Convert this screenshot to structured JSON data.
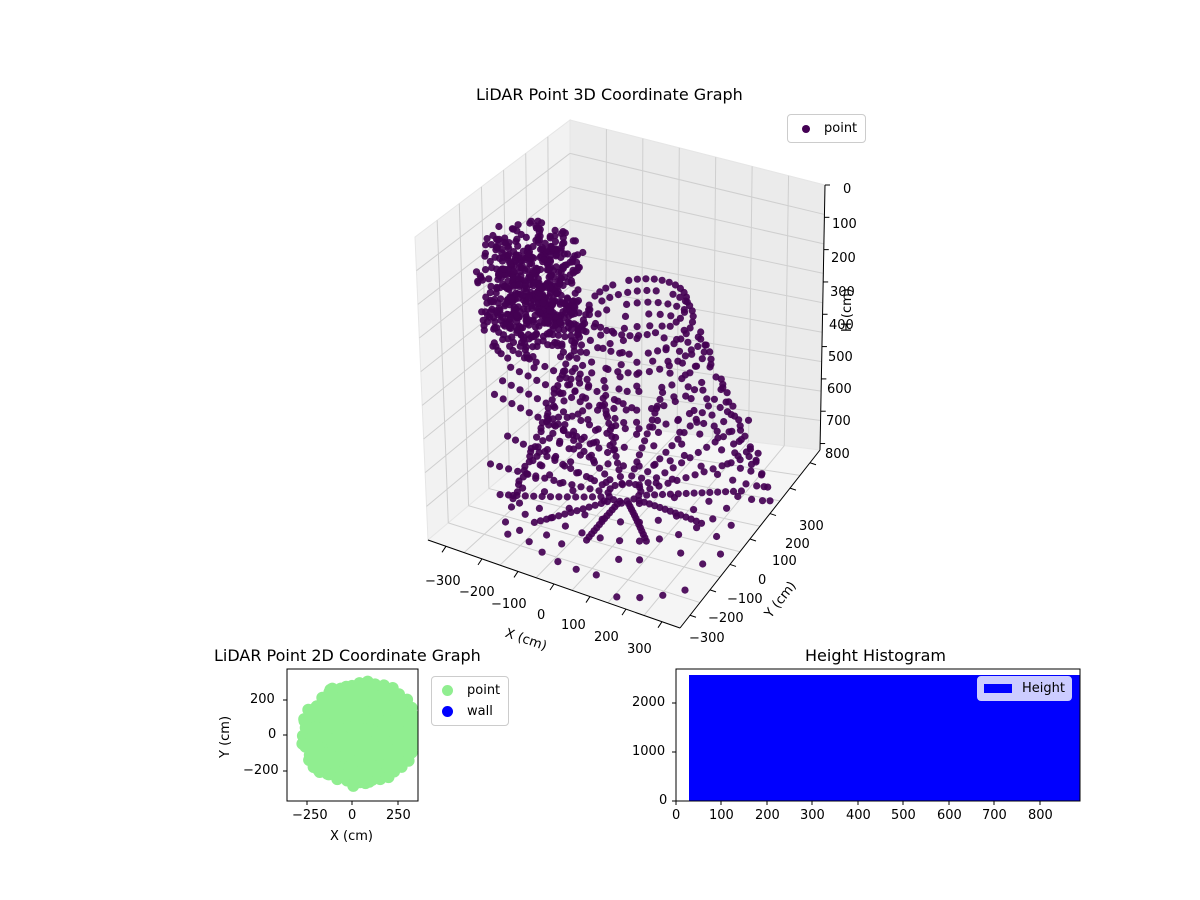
{
  "chart_data": [
    {
      "type": "scatter3d",
      "title": "LiDAR Point 3D Coordinate Graph",
      "xlabel": "X (cm)",
      "ylabel": "Y (cm)",
      "zlabel": "H (cm)",
      "x_ticks": [
        "−300",
        "−200",
        "−100",
        "0",
        "100",
        "200",
        "300"
      ],
      "y_ticks": [
        "−300",
        "−200",
        "−100",
        "0",
        "100",
        "200",
        "300"
      ],
      "z_ticks": [
        "0",
        "100",
        "200",
        "300",
        "400",
        "500",
        "600",
        "700",
        "800"
      ],
      "xlim": [
        -350,
        350
      ],
      "ylim": [
        -350,
        350
      ],
      "zlim": [
        0,
        900
      ],
      "z_inverted": true,
      "legend": [
        {
          "label": "point",
          "color": "#440154"
        }
      ],
      "legend_position": "upper right",
      "series": [
        {
          "name": "point",
          "color": "#440154",
          "description": "dense ring/dome-shaped LiDAR point cloud"
        }
      ]
    },
    {
      "type": "scatter",
      "title": "LiDAR Point 2D Coordinate Graph",
      "xlabel": "X (cm)",
      "ylabel": "Y (cm)",
      "x_ticks": [
        "−250",
        "0",
        "250"
      ],
      "y_ticks": [
        "200",
        "0",
        "−200"
      ],
      "xlim": [
        -360,
        360
      ],
      "ylim": [
        -360,
        360
      ],
      "legend": [
        {
          "label": "point",
          "color": "#90ee90"
        },
        {
          "label": "wall",
          "color": "#0000ff"
        }
      ],
      "legend_position": "outside right",
      "series": [
        {
          "name": "point",
          "color": "#90ee90",
          "description": "dense filled region of points covering most of the axes"
        },
        {
          "name": "wall",
          "color": "#0000ff",
          "values": []
        }
      ]
    },
    {
      "type": "bar",
      "title": "Height Histogram",
      "xlabel": "",
      "ylabel": "",
      "x_ticks": [
        "0",
        "100",
        "200",
        "300",
        "400",
        "500",
        "600",
        "700",
        "800"
      ],
      "y_ticks": [
        "0",
        "1000",
        "2000"
      ],
      "xlim": [
        0,
        890
      ],
      "ylim": [
        0,
        2680
      ],
      "legend": [
        {
          "label": "Height",
          "color": "#0000ff"
        }
      ],
      "legend_position": "upper right",
      "series": [
        {
          "name": "Height",
          "color": "#0000ff",
          "bin_start": 30,
          "bin_end": 890,
          "values": [
            2550
          ]
        }
      ]
    }
  ]
}
